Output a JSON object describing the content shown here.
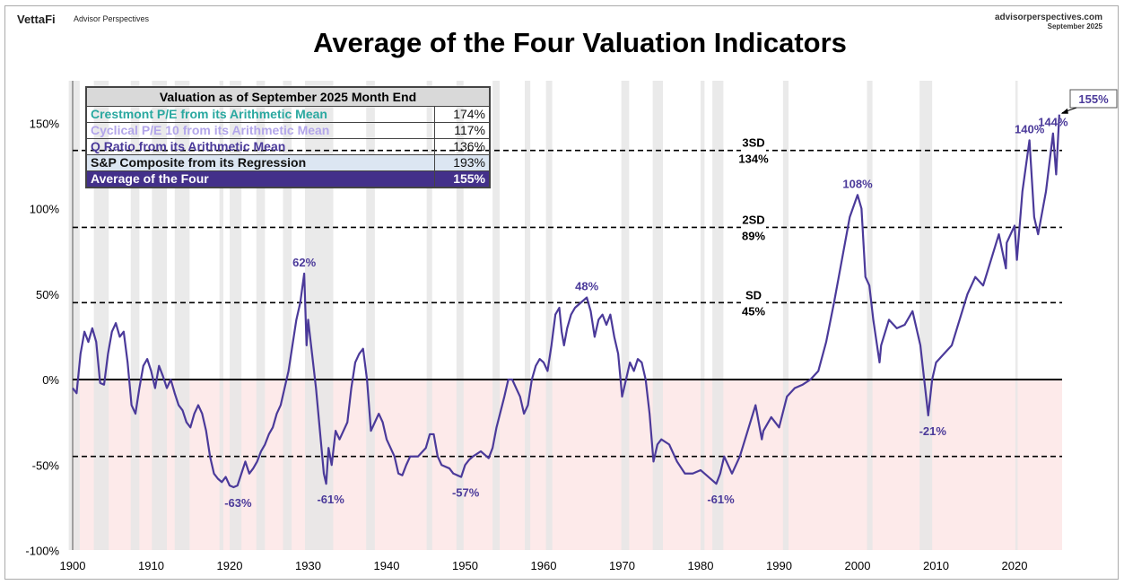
{
  "header": {
    "brand": "VettaFi",
    "brand_sub": "Advisor Perspectives",
    "site": "advisorperspectives.com",
    "date": "September 2025"
  },
  "table": {
    "title": "Valuation as of September 2025 Month End",
    "rows": [
      {
        "label": "Crestmont P/E from its Arithmetic Mean",
        "value": "174%",
        "color": "#2aa8a0"
      },
      {
        "label": "Cyclical P/E 10 from its Arithmetic Mean",
        "value": "117%",
        "color": "#b3a6ea"
      },
      {
        "label": "Q Ratio from its Arithmetic Mean",
        "value": "136%",
        "color": "#4b3a9a"
      },
      {
        "label": "S&P Composite from its Regression",
        "value": "193%",
        "color": "#111111"
      },
      {
        "label": "Average of the Four",
        "value": "155%",
        "color": "#ffffff"
      }
    ]
  },
  "chart_data": {
    "type": "line",
    "title": "Average of the Four Valuation Indicators",
    "xlim": [
      1900,
      2026
    ],
    "ylim": [
      -100,
      175
    ],
    "xticks": [
      "1900",
      "1910",
      "1920",
      "1930",
      "1940",
      "1950",
      "1960",
      "1970",
      "1980",
      "1990",
      "2000",
      "2010",
      "2020"
    ],
    "yticks": [
      {
        "v": 150,
        "label": "150%"
      },
      {
        "v": 100,
        "label": "100%"
      },
      {
        "v": 50,
        "label": "50%"
      },
      {
        "v": 0,
        "label": "0%"
      },
      {
        "v": -50,
        "label": "-50%"
      },
      {
        "v": -100,
        "label": "-100%"
      }
    ],
    "line_color": "#4b3a9a",
    "negative_fill": "#fdeaea",
    "recession_color": "#e6e6e6",
    "sd_lines": [
      {
        "v": 134,
        "name": "3SD",
        "label": "134%"
      },
      {
        "v": 89,
        "name": "2SD",
        "label": "89%"
      },
      {
        "v": 45,
        "name": "SD",
        "label": "45%"
      },
      {
        "v": -45,
        "name": "",
        "label": ""
      }
    ],
    "recessions": [
      [
        1899.5,
        1900.9
      ],
      [
        1902.7,
        1904.6
      ],
      [
        1907.4,
        1908.5
      ],
      [
        1910.1,
        1912.0
      ],
      [
        1913.0,
        1914.9
      ],
      [
        1918.7,
        1919.2
      ],
      [
        1920.0,
        1921.5
      ],
      [
        1923.4,
        1924.5
      ],
      [
        1926.8,
        1927.9
      ],
      [
        1929.6,
        1933.2
      ],
      [
        1937.4,
        1938.5
      ],
      [
        1945.1,
        1945.8
      ],
      [
        1948.9,
        1949.8
      ],
      [
        1953.5,
        1954.4
      ],
      [
        1957.6,
        1958.3
      ],
      [
        1960.3,
        1961.1
      ],
      [
        1969.9,
        1970.9
      ],
      [
        1973.9,
        1975.2
      ],
      [
        1980.0,
        1980.5
      ],
      [
        1981.5,
        1982.9
      ],
      [
        1990.5,
        1991.2
      ],
      [
        2001.2,
        2001.9
      ],
      [
        2007.9,
        2009.5
      ],
      [
        2020.1,
        2020.4
      ]
    ],
    "annotations": [
      {
        "x": 1920.5,
        "y": -63,
        "text": "-63%"
      },
      {
        "x": 1929.5,
        "y": 62,
        "text": "62%"
      },
      {
        "x": 1932.3,
        "y": -61,
        "text": "-61%"
      },
      {
        "x": 1949.5,
        "y": -57,
        "text": "-57%"
      },
      {
        "x": 1965.5,
        "y": 48,
        "text": "48%"
      },
      {
        "x": 1982,
        "y": -61,
        "text": "-61%"
      },
      {
        "x": 2000,
        "y": 108,
        "text": "108%"
      },
      {
        "x": 2009,
        "y": -21,
        "text": "-21%"
      },
      {
        "x": 2021.9,
        "y": 140,
        "text": "140%"
      },
      {
        "x": 2024.9,
        "y": 144,
        "text": "144%"
      }
    ],
    "callout": {
      "x": 2025.7,
      "y": 155,
      "text": "155%"
    },
    "points": [
      [
        1900,
        -5
      ],
      [
        1900.5,
        -8
      ],
      [
        1901,
        15
      ],
      [
        1901.5,
        28
      ],
      [
        1902,
        22
      ],
      [
        1902.5,
        30
      ],
      [
        1903,
        22
      ],
      [
        1903.5,
        -2
      ],
      [
        1904,
        -3
      ],
      [
        1904.5,
        15
      ],
      [
        1905,
        28
      ],
      [
        1905.5,
        33
      ],
      [
        1906,
        25
      ],
      [
        1906.5,
        28
      ],
      [
        1907,
        10
      ],
      [
        1907.5,
        -15
      ],
      [
        1908,
        -20
      ],
      [
        1908.5,
        -5
      ],
      [
        1909,
        8
      ],
      [
        1909.5,
        12
      ],
      [
        1910,
        5
      ],
      [
        1910.5,
        -5
      ],
      [
        1911,
        8
      ],
      [
        1911.5,
        2
      ],
      [
        1912,
        -5
      ],
      [
        1912.5,
        0
      ],
      [
        1913,
        -8
      ],
      [
        1913.5,
        -15
      ],
      [
        1914,
        -18
      ],
      [
        1914.5,
        -25
      ],
      [
        1915,
        -28
      ],
      [
        1915.5,
        -20
      ],
      [
        1916,
        -15
      ],
      [
        1916.5,
        -20
      ],
      [
        1917,
        -30
      ],
      [
        1917.5,
        -45
      ],
      [
        1918,
        -55
      ],
      [
        1918.5,
        -58
      ],
      [
        1919,
        -60
      ],
      [
        1919.5,
        -57
      ],
      [
        1920,
        -62
      ],
      [
        1920.5,
        -63
      ],
      [
        1921,
        -62
      ],
      [
        1921.5,
        -55
      ],
      [
        1922,
        -48
      ],
      [
        1922.5,
        -55
      ],
      [
        1923,
        -52
      ],
      [
        1923.5,
        -48
      ],
      [
        1924,
        -42
      ],
      [
        1924.5,
        -38
      ],
      [
        1925,
        -32
      ],
      [
        1925.5,
        -28
      ],
      [
        1926,
        -20
      ],
      [
        1926.5,
        -15
      ],
      [
        1927,
        -5
      ],
      [
        1927.5,
        5
      ],
      [
        1928,
        20
      ],
      [
        1928.5,
        35
      ],
      [
        1929,
        45
      ],
      [
        1929.5,
        62
      ],
      [
        1929.8,
        20
      ],
      [
        1930,
        35
      ],
      [
        1930.5,
        15
      ],
      [
        1931,
        -5
      ],
      [
        1931.5,
        -30
      ],
      [
        1932,
        -55
      ],
      [
        1932.3,
        -61
      ],
      [
        1932.6,
        -40
      ],
      [
        1933,
        -50
      ],
      [
        1933.5,
        -30
      ],
      [
        1934,
        -35
      ],
      [
        1934.5,
        -30
      ],
      [
        1935,
        -25
      ],
      [
        1935.5,
        -5
      ],
      [
        1936,
        10
      ],
      [
        1936.5,
        15
      ],
      [
        1937,
        18
      ],
      [
        1937.5,
        0
      ],
      [
        1938,
        -30
      ],
      [
        1938.5,
        -25
      ],
      [
        1939,
        -20
      ],
      [
        1939.5,
        -25
      ],
      [
        1940,
        -35
      ],
      [
        1940.5,
        -40
      ],
      [
        1941,
        -45
      ],
      [
        1941.5,
        -55
      ],
      [
        1942,
        -56
      ],
      [
        1942.5,
        -50
      ],
      [
        1943,
        -45
      ],
      [
        1944,
        -45
      ],
      [
        1945,
        -40
      ],
      [
        1945.5,
        -32
      ],
      [
        1946,
        -32
      ],
      [
        1946.5,
        -45
      ],
      [
        1947,
        -50
      ],
      [
        1948,
        -52
      ],
      [
        1948.5,
        -55
      ],
      [
        1949,
        -56
      ],
      [
        1949.5,
        -57
      ],
      [
        1950,
        -50
      ],
      [
        1950.5,
        -47
      ],
      [
        1951,
        -45
      ],
      [
        1952,
        -42
      ],
      [
        1953,
        -46
      ],
      [
        1953.5,
        -40
      ],
      [
        1954,
        -28
      ],
      [
        1955,
        -10
      ],
      [
        1955.5,
        0
      ],
      [
        1956,
        0
      ],
      [
        1956.5,
        -5
      ],
      [
        1957,
        -10
      ],
      [
        1957.5,
        -20
      ],
      [
        1958,
        -15
      ],
      [
        1958.5,
        0
      ],
      [
        1959,
        8
      ],
      [
        1959.5,
        12
      ],
      [
        1960,
        10
      ],
      [
        1960.5,
        5
      ],
      [
        1961,
        20
      ],
      [
        1961.5,
        38
      ],
      [
        1962,
        42
      ],
      [
        1962.3,
        28
      ],
      [
        1962.6,
        20
      ],
      [
        1963,
        30
      ],
      [
        1963.5,
        38
      ],
      [
        1964,
        42
      ],
      [
        1965,
        46
      ],
      [
        1965.5,
        48
      ],
      [
        1966,
        40
      ],
      [
        1966.5,
        25
      ],
      [
        1967,
        35
      ],
      [
        1967.5,
        38
      ],
      [
        1968,
        32
      ],
      [
        1968.5,
        38
      ],
      [
        1969,
        25
      ],
      [
        1969.5,
        15
      ],
      [
        1970,
        -10
      ],
      [
        1970.5,
        0
      ],
      [
        1971,
        10
      ],
      [
        1971.5,
        5
      ],
      [
        1972,
        12
      ],
      [
        1972.5,
        10
      ],
      [
        1973,
        0
      ],
      [
        1973.5,
        -20
      ],
      [
        1974,
        -48
      ],
      [
        1974.5,
        -38
      ],
      [
        1975,
        -35
      ],
      [
        1976,
        -38
      ],
      [
        1977,
        -48
      ],
      [
        1978,
        -55
      ],
      [
        1979,
        -55
      ],
      [
        1980,
        -53
      ],
      [
        1981,
        -57
      ],
      [
        1982,
        -61
      ],
      [
        1982.5,
        -55
      ],
      [
        1983,
        -45
      ],
      [
        1984,
        -55
      ],
      [
        1985,
        -45
      ],
      [
        1986,
        -30
      ],
      [
        1987,
        -15
      ],
      [
        1987.8,
        -35
      ],
      [
        1988,
        -30
      ],
      [
        1989,
        -22
      ],
      [
        1990,
        -28
      ],
      [
        1991,
        -10
      ],
      [
        1992,
        -5
      ],
      [
        1993,
        -3
      ],
      [
        1994,
        0
      ],
      [
        1995,
        5
      ],
      [
        1996,
        22
      ],
      [
        1997,
        45
      ],
      [
        1998,
        70
      ],
      [
        1999,
        95
      ],
      [
        2000,
        108
      ],
      [
        2000.5,
        100
      ],
      [
        2001,
        60
      ],
      [
        2001.5,
        55
      ],
      [
        2002,
        35
      ],
      [
        2002.8,
        10
      ],
      [
        2003,
        20
      ],
      [
        2004,
        35
      ],
      [
        2005,
        30
      ],
      [
        2006,
        32
      ],
      [
        2007,
        40
      ],
      [
        2008,
        20
      ],
      [
        2009,
        -21
      ],
      [
        2009.5,
        0
      ],
      [
        2010,
        10
      ],
      [
        2011,
        15
      ],
      [
        2012,
        20
      ],
      [
        2013,
        35
      ],
      [
        2014,
        50
      ],
      [
        2015,
        60
      ],
      [
        2016,
        55
      ],
      [
        2017,
        70
      ],
      [
        2018,
        85
      ],
      [
        2018.9,
        65
      ],
      [
        2019,
        80
      ],
      [
        2020,
        90
      ],
      [
        2020.3,
        70
      ],
      [
        2021,
        110
      ],
      [
        2021.9,
        140
      ],
      [
        2022.5,
        95
      ],
      [
        2023,
        85
      ],
      [
        2024,
        110
      ],
      [
        2024.9,
        144
      ],
      [
        2025.3,
        120
      ],
      [
        2025.7,
        155
      ]
    ]
  }
}
